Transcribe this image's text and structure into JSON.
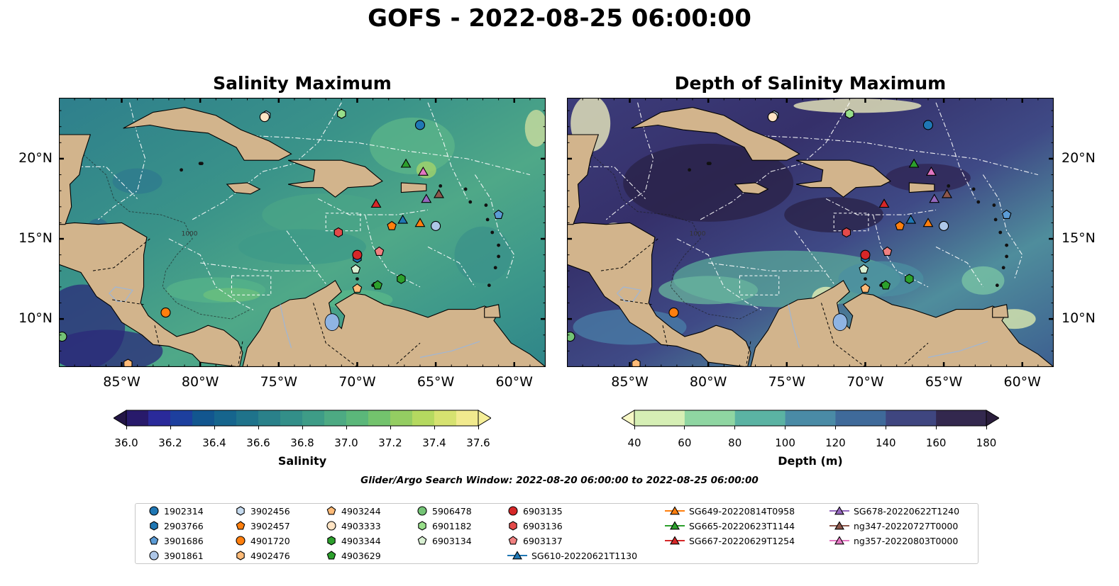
{
  "title": "GOFS - 2022-08-25 06:00:00",
  "panels": [
    {
      "title": "Salinity Maximum",
      "colorbar_label": "Salinity",
      "colorbar_ticks": [
        "36.0",
        "36.2",
        "36.4",
        "36.6",
        "36.8",
        "37.0",
        "37.2",
        "37.4",
        "37.6"
      ],
      "colormap": "haline"
    },
    {
      "title": "Depth of Salinity Maximum",
      "colorbar_label": "Depth (m)",
      "colorbar_ticks": [
        "40",
        "60",
        "80",
        "100",
        "120",
        "140",
        "160",
        "180"
      ],
      "colormap": "deep"
    }
  ],
  "axes": {
    "lon_ticks": [
      "85°W",
      "80°W",
      "75°W",
      "70°W",
      "65°W",
      "60°W"
    ],
    "lat_ticks": [
      "20°N",
      "15°N",
      "10°N"
    ],
    "lon_range": [
      -89,
      -58
    ],
    "lat_range": [
      7,
      23.8
    ]
  },
  "map_labels": {
    "contour_label": "1000"
  },
  "search_window": "Glider/Argo Search Window: 2022-08-20 06:00:00 to 2022-08-25 06:00:00",
  "colors": {
    "land": "#d2b48c",
    "coast": "#000000",
    "lake": "#8fb4e3"
  },
  "platforms": [
    {
      "id": "1902314",
      "marker": "circle",
      "color": "#1f77b4",
      "lon": -66.0,
      "lat": 22.1
    },
    {
      "id": "2903766",
      "marker": "hexagon",
      "color": "#1f77b4",
      "lon": -70.0,
      "lat": 13.8
    },
    {
      "id": "3901686",
      "marker": "pentagon",
      "color": "#5b9bd5",
      "lon": -61.0,
      "lat": 16.5
    },
    {
      "id": "3901861",
      "marker": "circle",
      "color": "#aec7e8",
      "lon": -65.0,
      "lat": 15.8
    },
    {
      "id": "3902456",
      "marker": "hexagon",
      "color": "#c6dbef",
      "lon": -75.8,
      "lat": 22.7
    },
    {
      "id": "3902457",
      "marker": "pentagon",
      "color": "#ff7f0e",
      "lon": -67.8,
      "lat": 15.8
    },
    {
      "id": "4901720",
      "marker": "circle",
      "color": "#ff7f0e",
      "lon": -82.2,
      "lat": 10.4
    },
    {
      "id": "4902476",
      "marker": "hexagon",
      "color": "#ffbb78",
      "lon": -84.6,
      "lat": 7.2
    },
    {
      "id": "4903244",
      "marker": "pentagon",
      "color": "#ffbb78",
      "lon": -70.0,
      "lat": 11.9
    },
    {
      "id": "4903333",
      "marker": "circle",
      "color": "#ffe4c4",
      "lon": -75.9,
      "lat": 22.6
    },
    {
      "id": "4903344",
      "marker": "hexagon",
      "color": "#2ca02c",
      "lon": -67.2,
      "lat": 12.5
    },
    {
      "id": "4903629",
      "marker": "pentagon",
      "color": "#2ca02c",
      "lon": -68.7,
      "lat": 12.1
    },
    {
      "id": "5906478",
      "marker": "circle",
      "color": "#74c476",
      "lon": -88.8,
      "lat": 8.9
    },
    {
      "id": "6901182",
      "marker": "hexagon",
      "color": "#98df8a",
      "lon": -71.0,
      "lat": 22.8
    },
    {
      "id": "6903134",
      "marker": "pentagon",
      "color": "#d9f0d3",
      "lon": -70.1,
      "lat": 13.1
    },
    {
      "id": "6903135",
      "marker": "circle",
      "color": "#d62728",
      "lon": -70.0,
      "lat": 14.0
    },
    {
      "id": "6903136",
      "marker": "hexagon",
      "color": "#e34a4a",
      "lon": -71.2,
      "lat": 15.4
    },
    {
      "id": "6903137",
      "marker": "pentagon",
      "color": "#f08080",
      "lon": -68.6,
      "lat": 14.2
    },
    {
      "id": "SG610-20220621T1130",
      "marker": "triangle",
      "color": "#1f77b4",
      "line": true,
      "lon": -67.1,
      "lat": 16.2
    },
    {
      "id": "SG649-20220814T0958",
      "marker": "triangle",
      "color": "#ff7f0e",
      "line": true,
      "lon": -66.0,
      "lat": 16.0
    },
    {
      "id": "SG665-20220623T1144",
      "marker": "triangle",
      "color": "#2ca02c",
      "line": true,
      "lon": -66.9,
      "lat": 19.7
    },
    {
      "id": "SG667-20220629T1254",
      "marker": "triangle",
      "color": "#d62728",
      "line": true,
      "lon": -68.8,
      "lat": 17.2
    },
    {
      "id": "SG678-20220622T1240",
      "marker": "triangle",
      "color": "#9467bd",
      "line": true,
      "lon": -65.6,
      "lat": 17.5
    },
    {
      "id": "ng347-20220727T0000",
      "marker": "triangle",
      "color": "#8c564b",
      "line": true,
      "lon": -64.8,
      "lat": 17.8
    },
    {
      "id": "ng357-20220803T0000",
      "marker": "triangle",
      "color": "#e377c2",
      "line": true,
      "lon": -65.8,
      "lat": 19.2
    }
  ]
}
